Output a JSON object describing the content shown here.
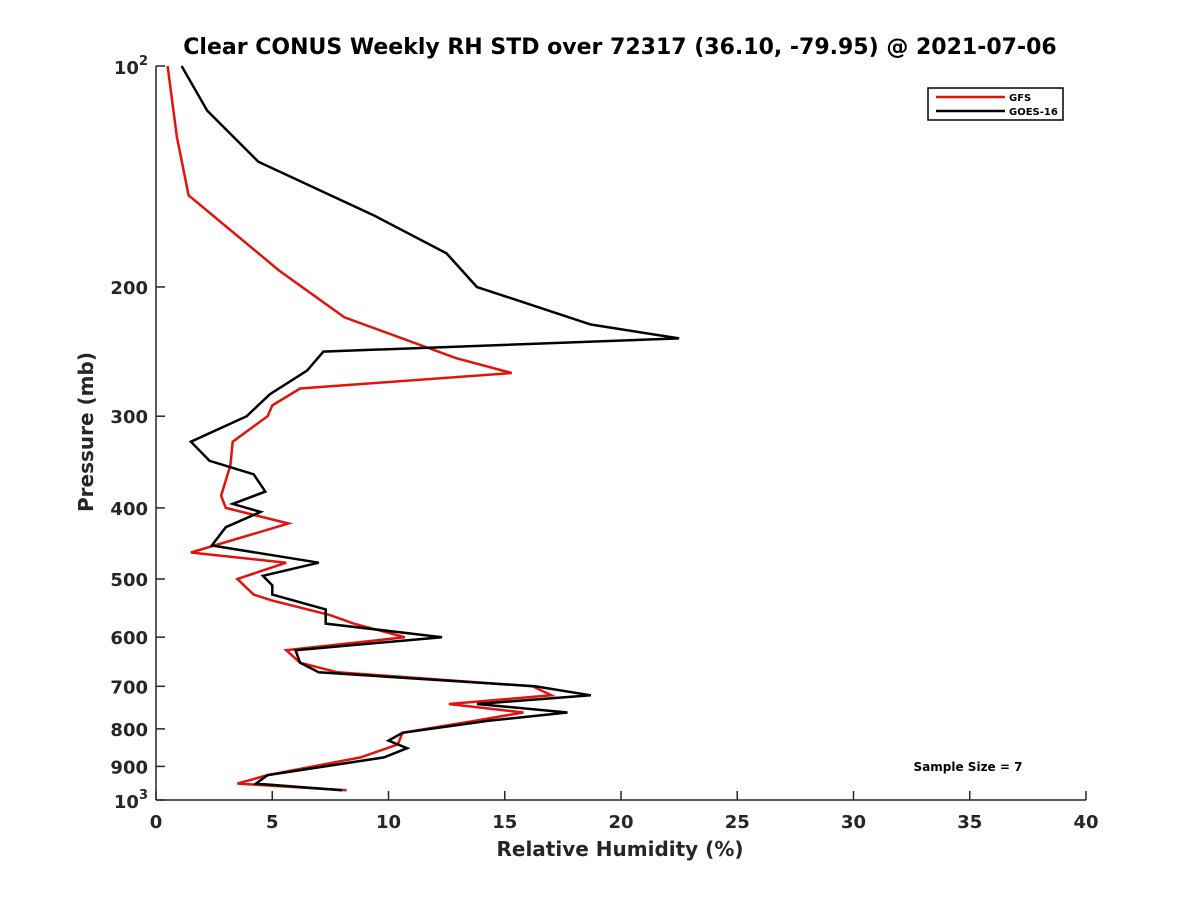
{
  "chart_data": {
    "type": "line",
    "title": "Clear CONUS Weekly RH STD over 72317 (36.10, -79.95) @ 2021-07-06",
    "xlabel": "Relative Humidity (%)",
    "ylabel": "Pressure (mb)",
    "xlim": [
      0,
      40
    ],
    "ylim": [
      100,
      1000
    ],
    "y_scale": "log",
    "y_reversed": true,
    "x_ticks": [
      "0",
      "5",
      "10",
      "15",
      "20",
      "25",
      "30",
      "35",
      "40"
    ],
    "y_ticks": [
      {
        "value": 100,
        "base": "10",
        "exp": "2"
      },
      {
        "value": 200,
        "label": "200"
      },
      {
        "value": 300,
        "label": "300"
      },
      {
        "value": 400,
        "label": "400"
      },
      {
        "value": 500,
        "label": "500"
      },
      {
        "value": 600,
        "label": "600"
      },
      {
        "value": 700,
        "label": "700"
      },
      {
        "value": 800,
        "label": "800"
      },
      {
        "value": 900,
        "label": "900"
      },
      {
        "value": 1000,
        "base": "10",
        "exp": "3"
      }
    ],
    "grid": false,
    "legend_position": "top-right",
    "annotation": "Sample Size = 7",
    "series": [
      {
        "name": "GFS",
        "color": "#e3120b",
        "points": [
          [
            0.5,
            100
          ],
          [
            0.9,
            125
          ],
          [
            1.4,
            150
          ],
          [
            5.3,
            190
          ],
          [
            8.1,
            220
          ],
          [
            12.9,
            250
          ],
          [
            15.3,
            262
          ],
          [
            6.2,
            275
          ],
          [
            5.0,
            290
          ],
          [
            4.8,
            300
          ],
          [
            3.3,
            325
          ],
          [
            3.2,
            350
          ],
          [
            2.8,
            385
          ],
          [
            3.0,
            400
          ],
          [
            5.7,
            420
          ],
          [
            1.5,
            460
          ],
          [
            5.6,
            475
          ],
          [
            3.5,
            500
          ],
          [
            4.2,
            525
          ],
          [
            5.0,
            535
          ],
          [
            7.5,
            560
          ],
          [
            8.5,
            575
          ],
          [
            10.7,
            600
          ],
          [
            5.6,
            625
          ],
          [
            6.2,
            650
          ],
          [
            7.8,
            670
          ],
          [
            16.2,
            700
          ],
          [
            17.0,
            720
          ],
          [
            12.6,
            740
          ],
          [
            15.8,
            760
          ],
          [
            13.7,
            780
          ],
          [
            10.6,
            810
          ],
          [
            10.4,
            840
          ],
          [
            8.8,
            875
          ],
          [
            4.8,
            925
          ],
          [
            3.5,
            950
          ],
          [
            8.2,
            970
          ]
        ]
      },
      {
        "name": "GOES-16",
        "color": "#000000",
        "points": [
          [
            1.1,
            100
          ],
          [
            2.2,
            115
          ],
          [
            4.4,
            135
          ],
          [
            9.4,
            160
          ],
          [
            12.5,
            180
          ],
          [
            13.8,
            200
          ],
          [
            18.7,
            225
          ],
          [
            22.5,
            235
          ],
          [
            7.2,
            245
          ],
          [
            6.5,
            260
          ],
          [
            4.9,
            280
          ],
          [
            3.9,
            300
          ],
          [
            1.5,
            325
          ],
          [
            2.3,
            345
          ],
          [
            4.2,
            360
          ],
          [
            4.7,
            380
          ],
          [
            3.3,
            395
          ],
          [
            4.5,
            405
          ],
          [
            3.0,
            425
          ],
          [
            2.4,
            450
          ],
          [
            7.0,
            475
          ],
          [
            4.6,
            495
          ],
          [
            5.0,
            510
          ],
          [
            5.0,
            525
          ],
          [
            7.3,
            550
          ],
          [
            7.3,
            575
          ],
          [
            12.3,
            600
          ],
          [
            6.0,
            625
          ],
          [
            6.2,
            650
          ],
          [
            7.0,
            670
          ],
          [
            16.3,
            700
          ],
          [
            18.7,
            720
          ],
          [
            13.8,
            740
          ],
          [
            17.7,
            760
          ],
          [
            14.3,
            780
          ],
          [
            10.6,
            810
          ],
          [
            10.0,
            830
          ],
          [
            10.8,
            850
          ],
          [
            9.8,
            875
          ],
          [
            4.8,
            925
          ],
          [
            4.3,
            950
          ],
          [
            8.0,
            970
          ]
        ]
      }
    ]
  }
}
